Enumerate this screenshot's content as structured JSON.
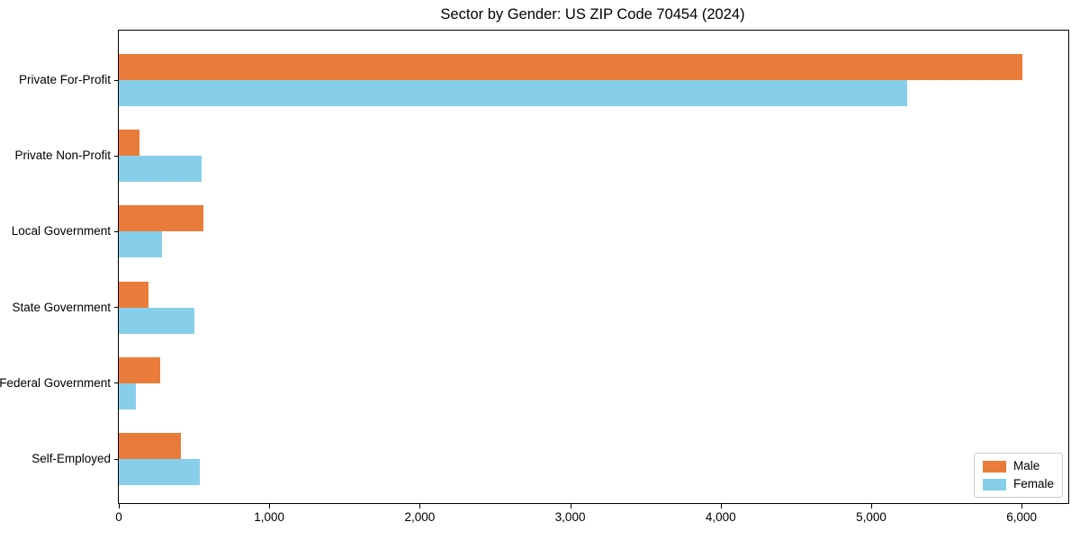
{
  "chart_data": {
    "type": "bar",
    "orientation": "horizontal",
    "title": "Sector by Gender: US ZIP Code 70454 (2024)",
    "xlabel": "",
    "ylabel": "",
    "grid": false,
    "categories": [
      "Private For-Profit",
      "Private Non-Profit",
      "Local Government",
      "State Government",
      "Federal Government",
      "Self-Employed"
    ],
    "series": [
      {
        "name": "Male",
        "color": "#e97c3a",
        "values": [
          6005,
          135,
          560,
          200,
          275,
          410
        ]
      },
      {
        "name": "Female",
        "color": "#87ceeb",
        "values": [
          5240,
          550,
          285,
          505,
          115,
          540
        ]
      }
    ],
    "xlim": [
      0,
      6310
    ],
    "x_ticks": [
      {
        "value": 0,
        "label": "0"
      },
      {
        "value": 1000,
        "label": "1,000"
      },
      {
        "value": 2000,
        "label": "2,000"
      },
      {
        "value": 3000,
        "label": "3,000"
      },
      {
        "value": 4000,
        "label": "4,000"
      },
      {
        "value": 5000,
        "label": "5,000"
      },
      {
        "value": 6000,
        "label": "6,000"
      }
    ],
    "legend": {
      "position": "lower right"
    }
  }
}
